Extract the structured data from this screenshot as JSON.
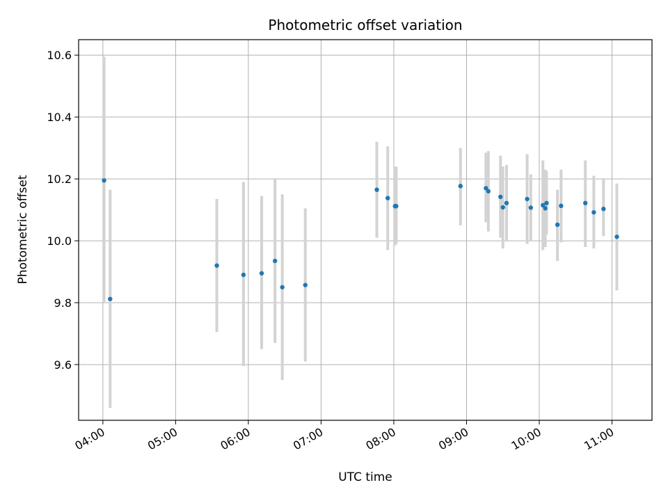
{
  "chart_data": {
    "type": "scatter",
    "title": "Photometric offset variation",
    "xlabel": "UTC time",
    "ylabel": "Photometric offset",
    "xlim": [
      "03:40",
      "11:33"
    ],
    "ylim": [
      9.42,
      10.65
    ],
    "x_ticks": [
      "04:00",
      "05:00",
      "06:00",
      "07:00",
      "08:00",
      "09:00",
      "10:00",
      "11:00"
    ],
    "y_ticks": [
      9.6,
      9.8,
      10.0,
      10.2,
      10.4,
      10.6
    ],
    "grid": true,
    "marker_color": "#1f77b4",
    "errorbar_color": "#d3d3d3",
    "series": [
      {
        "points": [
          {
            "x": "04:01",
            "y": 10.195,
            "ylo": 9.8,
            "yhi": 10.595
          },
          {
            "x": "04:06",
            "y": 9.812,
            "ylo": 9.46,
            "yhi": 10.165
          },
          {
            "x": "05:34",
            "y": 9.92,
            "ylo": 9.705,
            "yhi": 10.135
          },
          {
            "x": "05:56",
            "y": 9.89,
            "ylo": 9.595,
            "yhi": 10.19
          },
          {
            "x": "06:11",
            "y": 9.895,
            "ylo": 9.65,
            "yhi": 10.145
          },
          {
            "x": "06:22",
            "y": 9.935,
            "ylo": 9.67,
            "yhi": 10.2
          },
          {
            "x": "06:28",
            "y": 9.85,
            "ylo": 9.55,
            "yhi": 10.15
          },
          {
            "x": "06:47",
            "y": 9.857,
            "ylo": 9.61,
            "yhi": 10.105
          },
          {
            "x": "07:46",
            "y": 10.165,
            "ylo": 10.01,
            "yhi": 10.32
          },
          {
            "x": "07:55",
            "y": 10.138,
            "ylo": 9.97,
            "yhi": 10.305
          },
          {
            "x": "08:01",
            "y": 10.112,
            "ylo": 9.985,
            "yhi": 10.24
          },
          {
            "x": "08:02",
            "y": 10.112,
            "ylo": 9.99,
            "yhi": 10.24
          },
          {
            "x": "08:55",
            "y": 10.177,
            "ylo": 10.05,
            "yhi": 10.3
          },
          {
            "x": "09:16",
            "y": 10.17,
            "ylo": 10.06,
            "yhi": 10.285
          },
          {
            "x": "09:18",
            "y": 10.16,
            "ylo": 10.03,
            "yhi": 10.29
          },
          {
            "x": "09:28",
            "y": 10.142,
            "ylo": 10.01,
            "yhi": 10.275
          },
          {
            "x": "09:30",
            "y": 10.108,
            "ylo": 9.975,
            "yhi": 10.24
          },
          {
            "x": "09:33",
            "y": 10.122,
            "ylo": 10.0,
            "yhi": 10.245
          },
          {
            "x": "09:50",
            "y": 10.135,
            "ylo": 9.99,
            "yhi": 10.28
          },
          {
            "x": "09:53",
            "y": 10.107,
            "ylo": 10.0,
            "yhi": 10.215
          },
          {
            "x": "10:03",
            "y": 10.115,
            "ylo": 9.97,
            "yhi": 10.26
          },
          {
            "x": "10:05",
            "y": 10.105,
            "ylo": 9.98,
            "yhi": 10.23
          },
          {
            "x": "10:06",
            "y": 10.122,
            "ylo": 10.02,
            "yhi": 10.225
          },
          {
            "x": "10:15",
            "y": 10.052,
            "ylo": 9.935,
            "yhi": 10.165
          },
          {
            "x": "10:18",
            "y": 10.113,
            "ylo": 9.995,
            "yhi": 10.23
          },
          {
            "x": "10:38",
            "y": 10.122,
            "ylo": 9.98,
            "yhi": 10.26
          },
          {
            "x": "10:45",
            "y": 10.092,
            "ylo": 9.975,
            "yhi": 10.21
          },
          {
            "x": "10:53",
            "y": 10.103,
            "ylo": 10.015,
            "yhi": 10.2
          },
          {
            "x": "11:04",
            "y": 10.013,
            "ylo": 9.84,
            "yhi": 10.185
          }
        ]
      }
    ]
  }
}
